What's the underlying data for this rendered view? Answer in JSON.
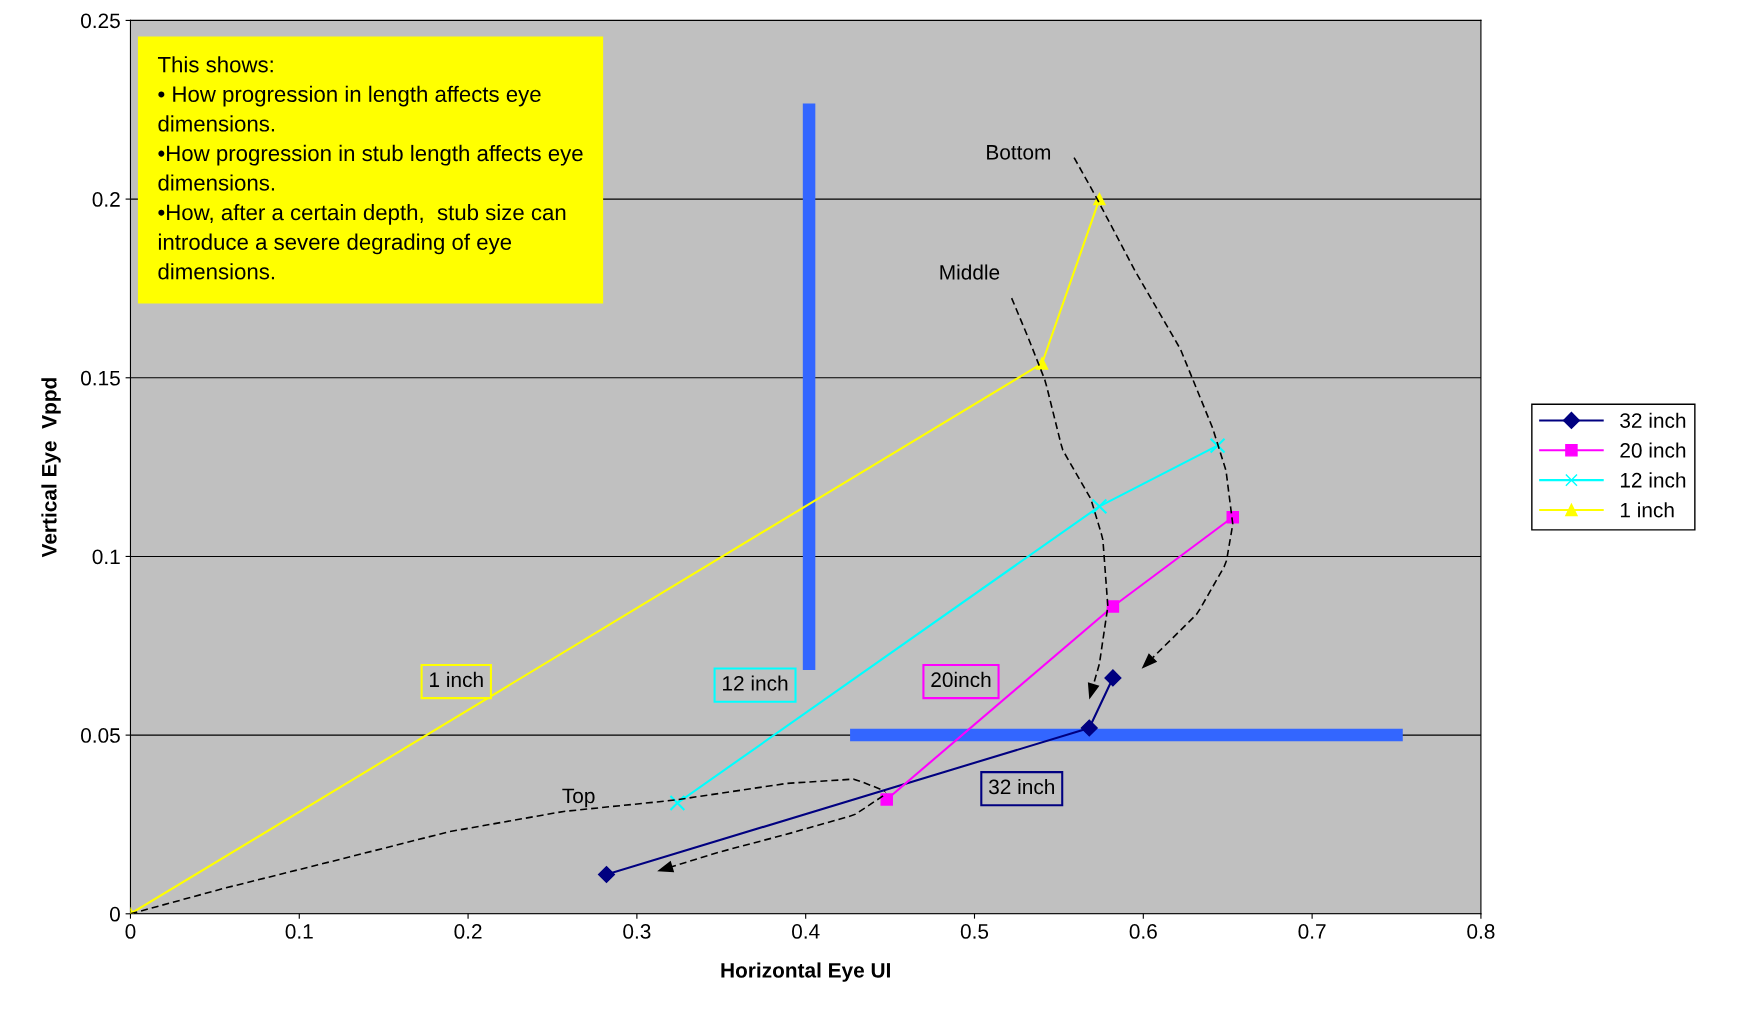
{
  "chart_data": {
    "type": "line",
    "xlabel": "Horizontal Eye UI",
    "ylabel": "Vertical Eye  Vppd",
    "xlim": [
      0,
      0.8
    ],
    "xticks": [
      0,
      0.1,
      0.2,
      0.3,
      0.4,
      0.5,
      0.6,
      0.7,
      0.8
    ],
    "ylim": [
      0,
      0.25
    ],
    "yticks": [
      0,
      0.05,
      0.1,
      0.15,
      0.2,
      0.25
    ],
    "grid": "y",
    "legend": "right",
    "series": [
      {
        "name": "32 inch",
        "color": "#000080",
        "marker": "diamond",
        "x": [
          0.282,
          0.568,
          0.582
        ],
        "values": [
          0.011,
          0.052,
          0.066
        ]
      },
      {
        "name": "20 inch",
        "color": "#ff00ff",
        "marker": "square",
        "x": [
          0.448,
          0.582,
          0.653
        ],
        "values": [
          0.032,
          0.086,
          0.111
        ]
      },
      {
        "name": "12 inch",
        "color": "#00ffff",
        "marker": "cross",
        "x": [
          0.324,
          0.574,
          0.644
        ],
        "values": [
          0.031,
          0.114,
          0.131
        ]
      },
      {
        "name": "1 inch",
        "color": "#ffff00",
        "marker": "triangle",
        "x": [
          0,
          0.54,
          0.574
        ],
        "values": [
          0,
          0.154,
          0.2
        ]
      },
      {
        "color": "#3366ff",
        "marker": "none",
        "x": [
          0.402,
          0.402
        ],
        "values": [
          0.07,
          0.225
        ]
      },
      {
        "color": "#3366ff",
        "marker": "none",
        "x": [
          0.43,
          0.75
        ],
        "values": [
          0.05,
          0.05
        ]
      }
    ],
    "annotations": [
      "This shows:\n• How progression in length affects eye\ndimensions.\n•How progression in stub length affects eye\ndimensions.\n•How, after a certain depth,  stub size can\nintroduce a severe degrading of eye\ndimensions.",
      "Top",
      "Middle",
      "Bottom",
      "1 inch",
      "12 inch",
      "20inch",
      "32 inch"
    ]
  }
}
